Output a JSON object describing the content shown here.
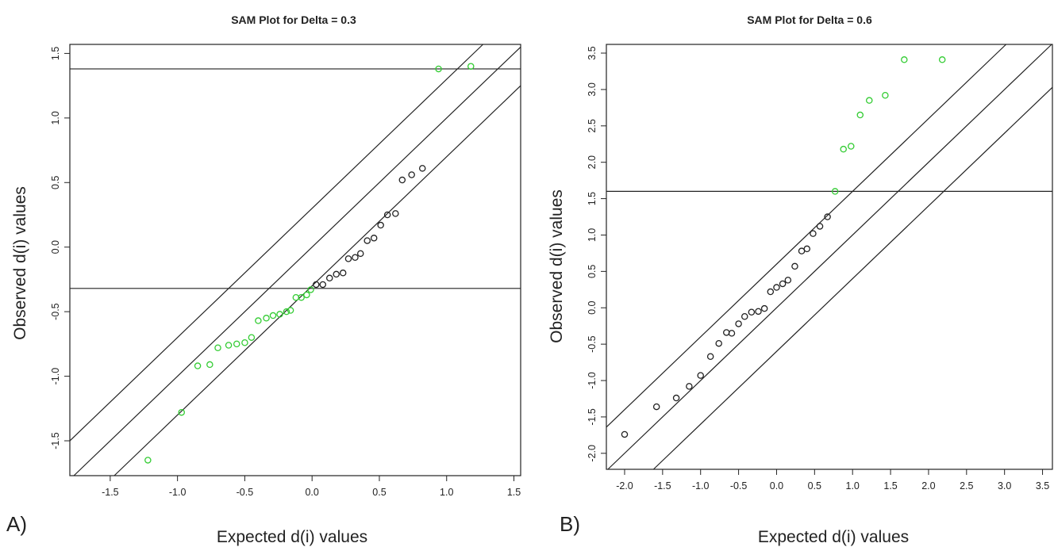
{
  "panel_labels": [
    "A)",
    "B)"
  ],
  "chart_data": [
    {
      "type": "scatter",
      "title": "SAM Plot for Delta = 0.3",
      "xlabel": "Expected d(i) values",
      "ylabel": "Observed d(i) values",
      "xlim": [
        -1.8,
        1.55
      ],
      "ylim": [
        -1.77,
        1.57
      ],
      "x_ticks": [
        -1.5,
        -1.0,
        -0.5,
        0.0,
        0.5,
        1.0,
        1.5
      ],
      "x_tick_labels": [
        "-1.5",
        "-1.0",
        "-0.5",
        "0.0",
        "0.5",
        "1.0",
        "1.5"
      ],
      "y_ticks": [
        -1.5,
        -1.0,
        -0.5,
        0.0,
        0.5,
        1.0,
        1.5
      ],
      "y_tick_labels": [
        "-1.5",
        "-1.0",
        "-0.5",
        "0.0",
        "0.5",
        "1.0",
        "1.5"
      ],
      "delta": 0.3,
      "diagonal_offsets": [
        0.3,
        0.0,
        -0.3
      ],
      "cutoffs": [
        1.38,
        -0.32
      ],
      "colors": {
        "significant": "#33cc33",
        "non_significant": "#222222",
        "lines": "#222222"
      },
      "grid": false,
      "series": [
        {
          "status": "significant",
          "points": [
            [
              -1.22,
              -1.65
            ],
            [
              -0.97,
              -1.28
            ],
            [
              -0.85,
              -0.92
            ],
            [
              -0.76,
              -0.91
            ],
            [
              -0.7,
              -0.78
            ],
            [
              -0.62,
              -0.76
            ],
            [
              -0.56,
              -0.75
            ],
            [
              -0.5,
              -0.74
            ],
            [
              -0.45,
              -0.7
            ],
            [
              -0.4,
              -0.57
            ],
            [
              -0.34,
              -0.55
            ],
            [
              -0.29,
              -0.53
            ],
            [
              -0.24,
              -0.52
            ],
            [
              -0.19,
              -0.5
            ],
            [
              -0.16,
              -0.49
            ],
            [
              -0.12,
              -0.39
            ],
            [
              -0.08,
              -0.39
            ],
            [
              -0.04,
              -0.37
            ],
            [
              -0.01,
              -0.33
            ],
            [
              0.94,
              1.38
            ],
            [
              1.18,
              1.4
            ]
          ]
        },
        {
          "status": "non_significant",
          "points": [
            [
              0.03,
              -0.29
            ],
            [
              0.08,
              -0.29
            ],
            [
              0.13,
              -0.24
            ],
            [
              0.18,
              -0.21
            ],
            [
              0.23,
              -0.2
            ],
            [
              0.27,
              -0.09
            ],
            [
              0.32,
              -0.08
            ],
            [
              0.36,
              -0.05
            ],
            [
              0.41,
              0.05
            ],
            [
              0.46,
              0.07
            ],
            [
              0.51,
              0.17
            ],
            [
              0.56,
              0.25
            ],
            [
              0.62,
              0.26
            ],
            [
              0.67,
              0.52
            ],
            [
              0.74,
              0.56
            ],
            [
              0.82,
              0.61
            ]
          ]
        }
      ]
    },
    {
      "type": "scatter",
      "title": "SAM Plot for Delta = 0.6",
      "xlabel": "Expected d(i) values",
      "ylabel": "Observed d(i) values",
      "xlim": [
        -2.24,
        3.63
      ],
      "ylim": [
        -2.22,
        3.62
      ],
      "x_ticks": [
        -2.0,
        -1.5,
        -1.0,
        -0.5,
        0.0,
        0.5,
        1.0,
        1.5,
        2.0,
        2.5,
        3.0,
        3.5
      ],
      "x_tick_labels": [
        "-2.0",
        "-1.5",
        "-1.0",
        "-0.5",
        "0.0",
        "0.5",
        "1.0",
        "1.5",
        "2.0",
        "2.5",
        "3.0",
        "3.5"
      ],
      "y_ticks": [
        -2.0,
        -1.5,
        -1.0,
        -0.5,
        0.0,
        0.5,
        1.0,
        1.5,
        2.0,
        2.5,
        3.0,
        3.5
      ],
      "y_tick_labels": [
        "-2.0",
        "-1.5",
        "-1.0",
        "-0.5",
        "0.0",
        "0.5",
        "1.0",
        "1.5",
        "2.0",
        "2.5",
        "3.0",
        "3.5"
      ],
      "delta": 0.6,
      "diagonal_offsets": [
        0.6,
        0.0,
        -0.6
      ],
      "cutoffs": [
        1.6
      ],
      "colors": {
        "significant": "#33cc33",
        "non_significant": "#222222",
        "lines": "#222222"
      },
      "grid": false,
      "series": [
        {
          "status": "significant",
          "points": [
            [
              0.77,
              1.6
            ],
            [
              0.88,
              2.18
            ],
            [
              0.98,
              2.22
            ],
            [
              1.1,
              2.65
            ],
            [
              1.22,
              2.85
            ],
            [
              1.43,
              2.92
            ],
            [
              1.68,
              3.41
            ],
            [
              2.18,
              3.41
            ]
          ]
        },
        {
          "status": "non_significant",
          "points": [
            [
              -2.0,
              -1.74
            ],
            [
              -1.58,
              -1.36
            ],
            [
              -1.32,
              -1.24
            ],
            [
              -1.15,
              -1.08
            ],
            [
              -1.0,
              -0.93
            ],
            [
              -0.87,
              -0.67
            ],
            [
              -0.76,
              -0.49
            ],
            [
              -0.66,
              -0.34
            ],
            [
              -0.59,
              -0.35
            ],
            [
              -0.5,
              -0.22
            ],
            [
              -0.42,
              -0.12
            ],
            [
              -0.33,
              -0.06
            ],
            [
              -0.24,
              -0.05
            ],
            [
              -0.16,
              -0.01
            ],
            [
              -0.08,
              0.22
            ],
            [
              0.0,
              0.28
            ],
            [
              0.08,
              0.33
            ],
            [
              0.15,
              0.38
            ],
            [
              0.24,
              0.57
            ],
            [
              0.33,
              0.78
            ],
            [
              0.4,
              0.81
            ],
            [
              0.48,
              1.02
            ],
            [
              0.57,
              1.12
            ],
            [
              0.67,
              1.25
            ]
          ]
        }
      ]
    }
  ]
}
